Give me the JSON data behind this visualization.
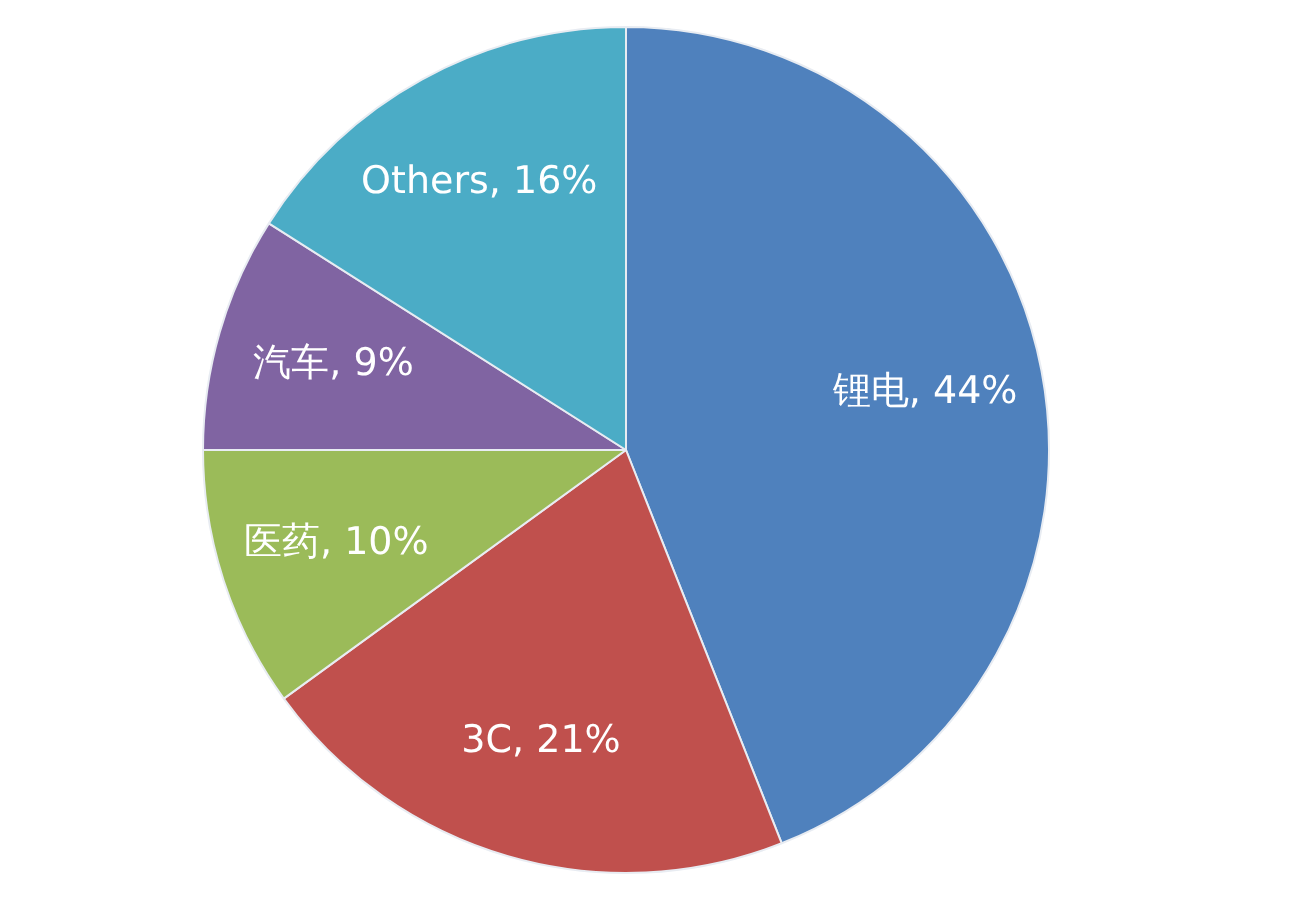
{
  "chart_data": {
    "type": "pie",
    "categories": [
      "锂电",
      "3C",
      "医药",
      "汽车",
      "Others"
    ],
    "values": [
      44,
      21,
      10,
      9,
      16
    ],
    "colors": [
      "#4f81bd",
      "#c0504d",
      "#9bbb59",
      "#8064a2",
      "#4bacc6"
    ],
    "value_labels": [
      "44%",
      "21%",
      "10%",
      "9%",
      "16%"
    ]
  }
}
